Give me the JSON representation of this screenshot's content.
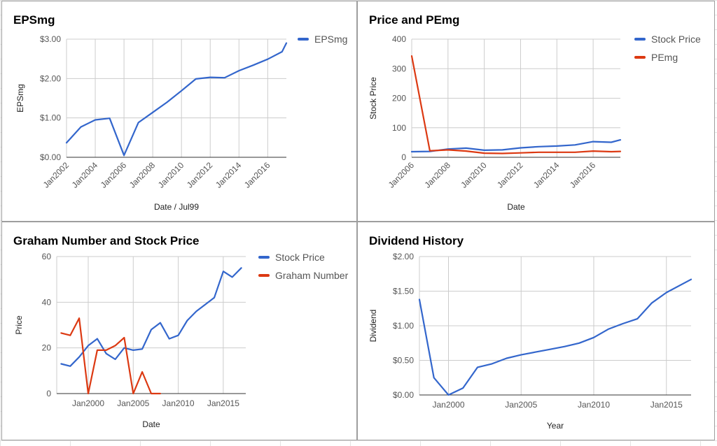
{
  "chart_data": [
    {
      "type": "line",
      "title": "EPSmg",
      "xlabel": "Date / Jul99",
      "ylabel": "EPSmg",
      "xlim": [
        2002,
        2017.3
      ],
      "ylim": [
        0,
        3
      ],
      "x_ticks": [
        2002,
        2004,
        2006,
        2008,
        2010,
        2012,
        2014,
        2016
      ],
      "x_tick_labels": [
        "Jan2002",
        "Jan2004",
        "Jan2006",
        "Jan2008",
        "Jan2010",
        "Jan2012",
        "Jan2014",
        "Jan2016"
      ],
      "y_ticks": [
        0,
        1,
        2,
        3
      ],
      "y_tick_labels": [
        "$0.00",
        "$1.00",
        "$2.00",
        "$3.00"
      ],
      "grid": true,
      "legend_position": "right",
      "series": [
        {
          "name": "EPSmg",
          "color": "#3366cc",
          "x": [
            2002,
            2003,
            2004,
            2005,
            2006,
            2007,
            2008,
            2009,
            2010,
            2011,
            2012,
            2013,
            2014,
            2015,
            2016,
            2017,
            2017.3
          ],
          "y": [
            0.37,
            0.77,
            0.95,
            0.99,
            0.05,
            0.88,
            1.14,
            1.4,
            1.69,
            1.99,
            2.03,
            2.02,
            2.2,
            2.34,
            2.49,
            2.68,
            2.9
          ]
        }
      ]
    },
    {
      "type": "line",
      "title": "Price and PEmg",
      "xlabel": "Date",
      "ylabel": "Stock Price",
      "xlim": [
        2006,
        2017.5
      ],
      "ylim": [
        0,
        400
      ],
      "x_ticks": [
        2006,
        2008,
        2010,
        2012,
        2014,
        2016
      ],
      "x_tick_labels": [
        "Jan2006",
        "Jan2008",
        "Jan2010",
        "Jan2012",
        "Jan2014",
        "Jan2016"
      ],
      "y_ticks": [
        0,
        100,
        200,
        300,
        400
      ],
      "y_tick_labels": [
        "0",
        "100",
        "200",
        "300",
        "400"
      ],
      "grid": true,
      "legend_position": "right",
      "series": [
        {
          "name": "Stock Price",
          "color": "#3366cc",
          "x": [
            2006,
            2007,
            2008,
            2009,
            2010,
            2011,
            2012,
            2013,
            2014,
            2015,
            2016,
            2017,
            2017.5
          ],
          "y": [
            19,
            20,
            28,
            31,
            24,
            25,
            32,
            36,
            38,
            42,
            53,
            51,
            59
          ]
        },
        {
          "name": "PEmg",
          "color": "#dc3912",
          "x": [
            2006,
            2007,
            2008,
            2009,
            2010,
            2011,
            2012,
            2013,
            2014,
            2015,
            2016,
            2017,
            2017.5
          ],
          "y": [
            343,
            22,
            25,
            21,
            14,
            13,
            15,
            17,
            17,
            17,
            21,
            19,
            20
          ]
        }
      ]
    },
    {
      "type": "line",
      "title": "Graham Number and Stock Price",
      "xlabel": "Date",
      "ylabel": "Price",
      "xlim": [
        1996.5,
        2017.5
      ],
      "ylim": [
        0,
        60
      ],
      "x_ticks": [
        2000,
        2005,
        2010,
        2015
      ],
      "x_tick_labels": [
        "Jan2000",
        "Jan2005",
        "Jan2010",
        "Jan2015"
      ],
      "y_ticks": [
        0,
        20,
        40,
        60
      ],
      "y_tick_labels": [
        "0",
        "20",
        "40",
        "60"
      ],
      "grid": true,
      "legend_position": "right",
      "series": [
        {
          "name": "Stock Price",
          "color": "#3366cc",
          "x": [
            1997,
            1998,
            1999,
            2000,
            2001,
            2002,
            2003,
            2004,
            2005,
            2006,
            2007,
            2008,
            2009,
            2010,
            2011,
            2012,
            2013,
            2014,
            2015,
            2016,
            2017
          ],
          "y": [
            13,
            12,
            16,
            21,
            24,
            17.5,
            15,
            20,
            19,
            19.5,
            28,
            31,
            24,
            25.5,
            32,
            36,
            39,
            42,
            53.5,
            51,
            55
          ]
        },
        {
          "name": "Graham Number",
          "color": "#dc3912",
          "x": [
            1997,
            1998,
            1999,
            2000,
            2001,
            2002,
            2003,
            2004,
            2005,
            2006,
            2007,
            2008
          ],
          "y": [
            26.5,
            25.5,
            33,
            0,
            19,
            19,
            21,
            24.5,
            0,
            9.5,
            0,
            0
          ]
        }
      ]
    },
    {
      "type": "line",
      "title": "Dividend History",
      "xlabel": "Year",
      "ylabel": "Dividend",
      "xlim": [
        1998,
        2016.7
      ],
      "ylim": [
        0,
        2
      ],
      "x_ticks": [
        2000,
        2005,
        2010,
        2015
      ],
      "x_tick_labels": [
        "Jan2000",
        "Jan2005",
        "Jan2010",
        "Jan2015"
      ],
      "y_ticks": [
        0,
        0.5,
        1,
        1.5,
        2
      ],
      "y_tick_labels": [
        "$0.00",
        "$0.50",
        "$1.00",
        "$1.50",
        "$2.00"
      ],
      "grid": true,
      "legend_position": "none",
      "series": [
        {
          "name": "",
          "color": "#3366cc",
          "x": [
            1998,
            1999,
            2000,
            2001,
            2002,
            2003,
            2004,
            2005,
            2006,
            2007,
            2008,
            2009,
            2010,
            2011,
            2012,
            2013,
            2014,
            2015,
            2016.7
          ],
          "y": [
            1.38,
            0.25,
            0.0,
            0.1,
            0.4,
            0.45,
            0.53,
            0.58,
            0.62,
            0.66,
            0.7,
            0.75,
            0.83,
            0.95,
            1.03,
            1.1,
            1.33,
            1.48,
            1.67
          ]
        }
      ]
    }
  ]
}
